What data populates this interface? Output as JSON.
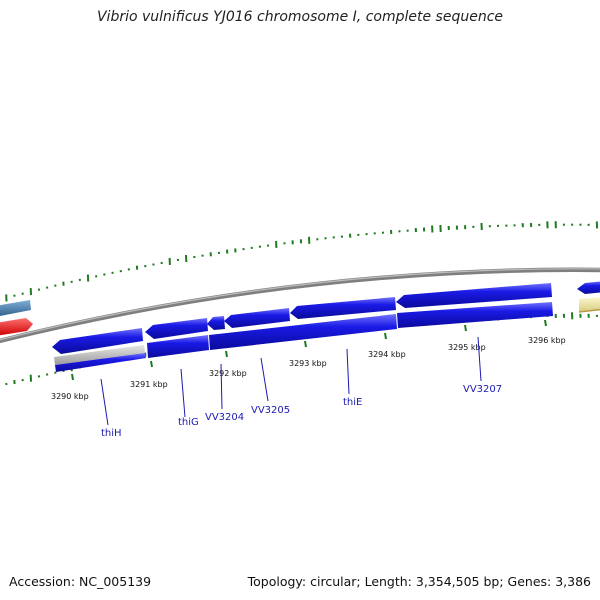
{
  "title": "Vibrio vulnificus YJ016 chromosome I, complete sequence",
  "accession": "Accession: NC_005139",
  "summary": "Topology: circular; Length: 3,354,505 bp; Genes: 3,386",
  "ticks": [
    "3290 kbp",
    "3291 kbp",
    "3292 kbp",
    "3293 kbp",
    "3294 kbp",
    "3295 kbp",
    "3296 kbp"
  ],
  "genes": [
    "thiH",
    "thiG",
    "VV3204",
    "VV3205",
    "thiE",
    "VV3207"
  ],
  "colors": {
    "backbone": "#8a8a8a",
    "cds": "#1515d8",
    "cds_highlight": "#6a6aff",
    "gc_marks": "#1f7a1f",
    "feature_red": "#ff1a1a",
    "feature_steelblue": "#4682b4",
    "feature_gray": "#c0c0c0",
    "feature_khaki": "#eee8aa",
    "gene_label": "#1b1bb0"
  }
}
